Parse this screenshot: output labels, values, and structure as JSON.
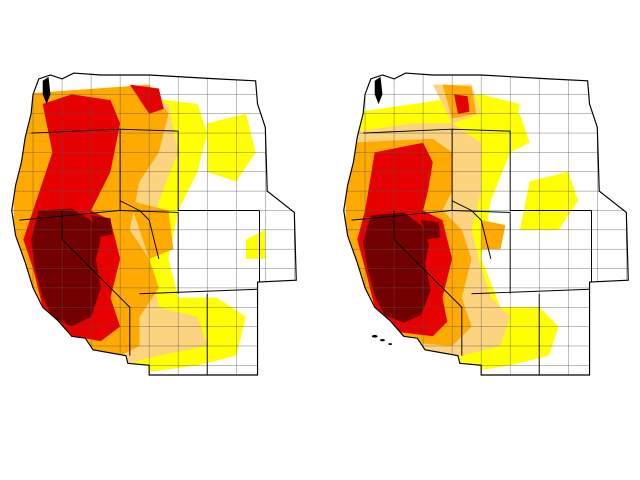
{
  "colors": {
    "background": "#ffffff",
    "border": "#000000",
    "county_lines": "#555555",
    "none": "#ffffff",
    "D0": "#ffff00",
    "D1": "#fcd37f",
    "D2": "#ffaa00",
    "D3": "#e60000",
    "D4": "#730000"
  },
  "maps": [
    {
      "name": "left-map",
      "dominant_intensity": "D4"
    },
    {
      "name": "right-map",
      "dominant_intensity": "D4"
    }
  ]
}
